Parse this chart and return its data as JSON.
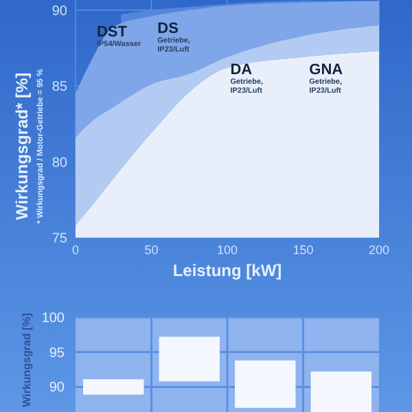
{
  "chart_data": [
    {
      "type": "area",
      "xlabel": "Leistung [kW]",
      "ylabel": "Wirkungsgrad* [%]",
      "x": [
        0,
        10,
        25,
        50,
        75,
        100,
        150,
        200
      ],
      "series": [
        {
          "name": "DST",
          "color": "#5486dc",
          "x": [
            30,
            50,
            75,
            100,
            150,
            200
          ],
          "values": [
            89.7,
            90.0,
            90.2,
            90.4,
            90.6,
            90.6
          ]
        },
        {
          "name": "DS",
          "color": "#7fa6e8",
          "values": [
            84.5,
            86.6,
            88.9,
            89.6,
            90.0,
            90.3,
            90.5,
            90.6
          ]
        },
        {
          "name": "DA",
          "color": "#b3cbf2",
          "values": [
            81.6,
            82.6,
            83.6,
            85.1,
            85.8,
            86.9,
            88.3,
            89.0
          ]
        },
        {
          "name": "GNA",
          "color": "#e8effb",
          "values": [
            75.8,
            77.0,
            78.9,
            81.9,
            84.6,
            86.2,
            86.9,
            87.3
          ]
        }
      ],
      "annotations": [
        "IP54/Wasser",
        "Getriebe, IP23/Luft",
        "Getriebe, IP23/Luft",
        "Getriebe, IP23/Luft",
        "* Wirkungsgrad / Motor-Getriebe = 95 %"
      ],
      "xlim": [
        0,
        200
      ],
      "xticks": [
        0,
        50,
        100,
        150,
        200
      ],
      "ylim": [
        75,
        90.66
      ],
      "yticks": [
        75,
        80,
        85,
        90
      ],
      "grid": true
    },
    {
      "type": "bar",
      "ylabel": "Wirkungsgrad [%]",
      "categories": [
        null,
        null,
        null,
        null
      ],
      "values": [
        2.2,
        6.4,
        6.8,
        5.8
      ],
      "base": [
        88.9,
        90.8,
        87.0,
        86.4
      ],
      "color": "#f4f7fd",
      "ylim": [
        86.4,
        100
      ],
      "yticks": [
        90,
        95,
        100
      ],
      "grid": true
    }
  ]
}
